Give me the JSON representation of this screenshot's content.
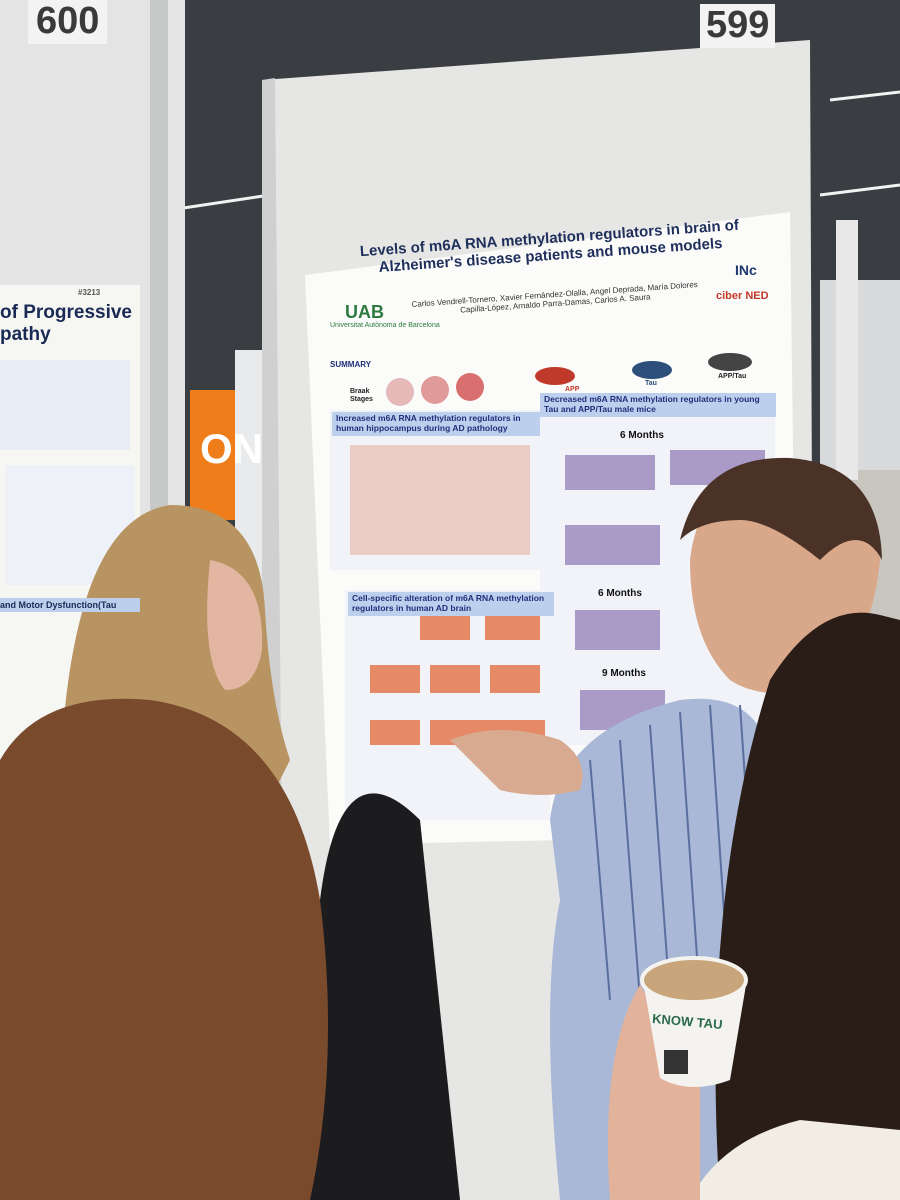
{
  "boards": [
    {
      "number": "600"
    },
    {
      "number": "599"
    }
  ],
  "poster": {
    "title": "Levels of m6A RNA methylation regulators in brain of Alzheimer's disease patients and mouse models",
    "authors": "Carlos Vendrell-Tornero, Xavier Fernández-Olalla, Angel Deprada, María Dolores Capilla-López, Arnaldo Parra-Damas, Carlos A. Saura",
    "logo_left": "UAB",
    "logo_left_sub": "Universitat Autònoma de Barcelona",
    "logo_right": "INc",
    "logo_right_sub": "ciber NED",
    "summary_label": "SUMMARY",
    "braak_label": "Braak Stages",
    "sections": [
      "Increased m6A RNA methylation regulators in human hippocampus during AD pathology",
      "Decreased m6A RNA methylation regulators in young Tau and APP/Tau male mice",
      "Cell-specific alteration of m6A RNA methylation regulators in human AD brain"
    ],
    "months": [
      "6 Months",
      "6 Months",
      "9 Months"
    ],
    "mouse_labels": [
      "APP",
      "Tau",
      "APP/Tau"
    ]
  },
  "left_poster": {
    "number": "#3213",
    "title_fragment": "of Progressive",
    "title_fragment_2": "pathy",
    "section": "and Motor Dysfunction(Tau"
  },
  "sign": {
    "text": "ON"
  },
  "cup": {
    "brand": "KNOW TAU"
  }
}
